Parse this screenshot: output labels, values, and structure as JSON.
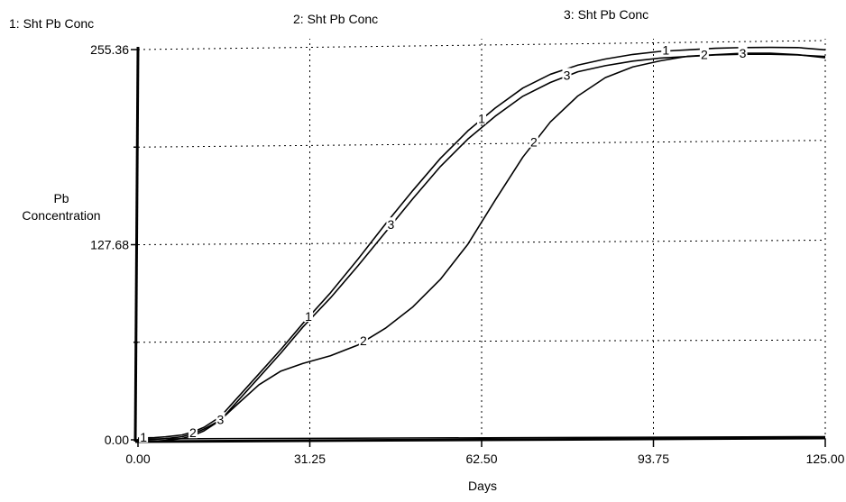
{
  "chart_data": {
    "type": "line",
    "xlabel": "Days",
    "ylabel": "Pb Concentration",
    "xlim": [
      0,
      125
    ],
    "ylim": [
      0,
      255.36
    ],
    "grid": true,
    "x_ticks": [
      "0.00",
      "31.25",
      "62.50",
      "93.75",
      "125.00"
    ],
    "y_ticks": [
      "0.00",
      "127.68",
      "255.36"
    ],
    "legend_position": "top",
    "series": [
      {
        "name": "Sht Pb Conc",
        "legend_label": "1: Sht Pb Conc",
        "marker": "1",
        "x": [
          0,
          3,
          5,
          8,
          10,
          12,
          15,
          18,
          22,
          26,
          30,
          35,
          40,
          45,
          50,
          55,
          60,
          65,
          70,
          75,
          80,
          85,
          90,
          95,
          100,
          105,
          110,
          115,
          120,
          125
        ],
        "y": [
          0,
          0.3,
          0.8,
          2,
          4,
          7,
          14,
          26,
          42,
          58,
          75,
          95,
          117,
          140,
          162,
          183,
          201,
          216,
          229,
          238,
          244,
          248,
          251,
          253,
          254,
          255,
          255.5,
          255.6,
          255.5,
          254
        ],
        "marker_x": [
          1,
          31,
          62.5,
          96
        ]
      },
      {
        "name": "Sht Pb Conc",
        "legend_label": "2: Sht Pb Conc",
        "marker": "2",
        "x": [
          0,
          3,
          5,
          8,
          10,
          12,
          15,
          18,
          22,
          26,
          30,
          35,
          40,
          45,
          50,
          55,
          60,
          65,
          70,
          75,
          80,
          85,
          90,
          95,
          100,
          105,
          110,
          115,
          120,
          125
        ],
        "y": [
          0,
          0.3,
          0.8,
          2,
          4,
          7,
          13,
          23,
          36,
          45,
          50,
          55,
          62,
          73,
          87,
          105,
          128,
          157,
          185,
          208,
          225,
          237,
          244,
          248,
          251,
          252,
          253,
          253,
          252,
          250
        ],
        "marker_x": [
          10,
          41,
          72,
          103
        ]
      },
      {
        "name": "Sht Pb Conc",
        "legend_label": "3: Sht Pb Conc",
        "marker": "3",
        "x": [
          0,
          3,
          5,
          8,
          10,
          12,
          15,
          18,
          22,
          26,
          30,
          35,
          40,
          45,
          50,
          55,
          60,
          65,
          70,
          75,
          80,
          85,
          90,
          95,
          100,
          105,
          110,
          115,
          120,
          125
        ],
        "y": [
          0,
          0.3,
          0.8,
          2,
          4,
          7,
          14,
          26,
          42,
          58,
          75,
          94,
          115,
          137,
          159,
          180,
          198,
          213,
          226,
          235,
          242,
          246,
          249,
          251,
          252,
          253,
          253.5,
          253.5,
          253,
          252
        ],
        "marker_x": [
          15,
          46,
          78,
          110
        ]
      }
    ],
    "baseline_series": {
      "description": "",
      "x": [
        0,
        125
      ],
      "y": [
        0,
        1.5
      ]
    }
  }
}
